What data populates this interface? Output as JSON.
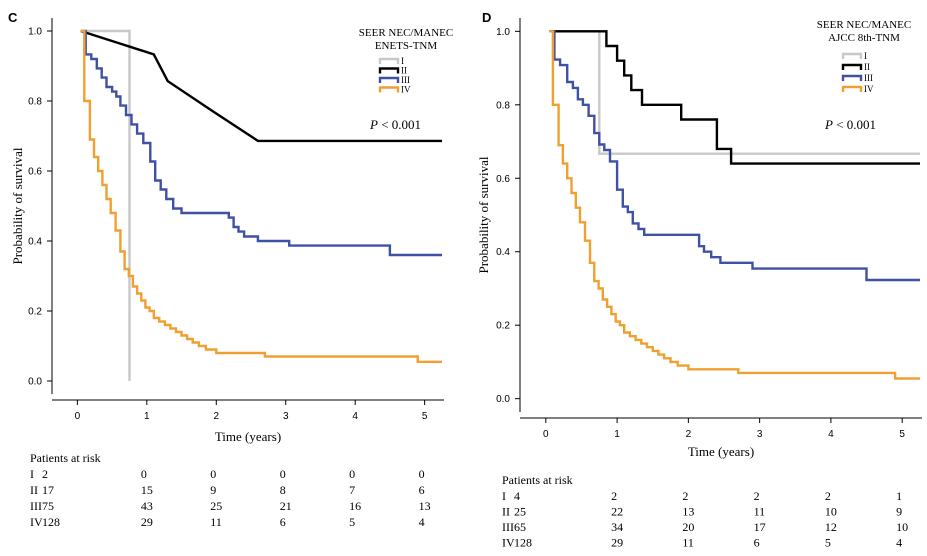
{
  "chart_data": [
    {
      "panel": "C",
      "type": "line",
      "title": [
        "SEER NEC/MANEC",
        "ENETS-TNM"
      ],
      "xlabel": "Time (years)",
      "ylabel": "Probability of survival",
      "xlim": [
        -0.25,
        5.25
      ],
      "ylim": [
        -0.02,
        1.02
      ],
      "xticks": [
        0,
        1,
        2,
        3,
        4,
        5
      ],
      "yticks": [
        0.0,
        0.2,
        0.4,
        0.6,
        0.8,
        1.0
      ],
      "ytick_labels": [
        "0.0",
        "0.2",
        "0.4",
        "0.6",
        "0.8",
        "1.0"
      ],
      "legend_position": "top-right",
      "annotation_p": "P",
      "annotation_rest": " < 0.001",
      "series": [
        {
          "name": "I",
          "color": "#c8c8c8",
          "x": [
            0.05,
            0.75,
            0.75
          ],
          "y": [
            1.0,
            1.0,
            0.0
          ]
        },
        {
          "name": "II",
          "color": "#000000",
          "x": [
            0.05,
            1.1,
            1.3,
            1.95,
            2.6,
            5.25
          ],
          "y": [
            1.0,
            0.933,
            0.857,
            0.771,
            0.686,
            0.686
          ]
        },
        {
          "name": "III",
          "color": "#3f51a5",
          "x": [
            0.05,
            0.12,
            0.2,
            0.28,
            0.35,
            0.42,
            0.5,
            0.56,
            0.62,
            0.7,
            0.78,
            0.86,
            0.95,
            1.05,
            1.12,
            1.2,
            1.28,
            1.38,
            1.5,
            1.7,
            2.18,
            2.25,
            2.32,
            2.4,
            2.6,
            3.05,
            4.5,
            5.25
          ],
          "y": [
            1.0,
            0.933,
            0.92,
            0.893,
            0.867,
            0.84,
            0.827,
            0.813,
            0.787,
            0.76,
            0.733,
            0.707,
            0.68,
            0.627,
            0.573,
            0.547,
            0.52,
            0.493,
            0.48,
            0.48,
            0.467,
            0.44,
            0.427,
            0.413,
            0.4,
            0.387,
            0.36,
            0.36
          ],
          "step": true
        },
        {
          "name": "IV",
          "color": "#f0a030",
          "x": [
            0.05,
            0.1,
            0.18,
            0.24,
            0.3,
            0.36,
            0.42,
            0.48,
            0.55,
            0.62,
            0.68,
            0.74,
            0.8,
            0.86,
            0.92,
            0.98,
            1.04,
            1.1,
            1.18,
            1.26,
            1.34,
            1.42,
            1.5,
            1.58,
            1.66,
            1.75,
            1.85,
            2.0,
            2.2,
            2.7,
            4.9,
            5.25
          ],
          "y": [
            1.0,
            0.8,
            0.69,
            0.64,
            0.6,
            0.56,
            0.52,
            0.48,
            0.43,
            0.37,
            0.32,
            0.3,
            0.27,
            0.25,
            0.23,
            0.21,
            0.2,
            0.18,
            0.17,
            0.16,
            0.15,
            0.14,
            0.13,
            0.12,
            0.11,
            0.1,
            0.09,
            0.08,
            0.08,
            0.07,
            0.055,
            0.055
          ],
          "step": true
        }
      ],
      "risk_table": {
        "title": "Patients at risk",
        "rows": [
          {
            "label": "I",
            "values": [
              "2",
              "0",
              "0",
              "0",
              "0",
              "0"
            ]
          },
          {
            "label": "II",
            "values": [
              "17",
              "15",
              "9",
              "8",
              "7",
              "6"
            ]
          },
          {
            "label": "III",
            "values": [
              "75",
              "43",
              "25",
              "21",
              "16",
              "13"
            ]
          },
          {
            "label": "IV",
            "values": [
              "128",
              "29",
              "11",
              "6",
              "5",
              "4"
            ]
          }
        ]
      }
    },
    {
      "panel": "D",
      "type": "line",
      "title": [
        "SEER NEC/MANEC",
        "AJCC 8th-TNM"
      ],
      "xlabel": "Time (years)",
      "ylabel": "Probability of survival",
      "xlim": [
        -0.25,
        5.25
      ],
      "ylim": [
        -0.02,
        1.02
      ],
      "xticks": [
        0,
        1,
        2,
        3,
        4,
        5
      ],
      "yticks": [
        0.0,
        0.2,
        0.4,
        0.6,
        0.8,
        1.0
      ],
      "ytick_labels": [
        "0.0",
        "0.2",
        "0.4",
        "0.6",
        "0.8",
        "1.0"
      ],
      "legend_position": "top-right",
      "annotation_p": "P",
      "annotation_rest": " < 0.001",
      "series": [
        {
          "name": "I",
          "color": "#c8c8c8",
          "x": [
            0.05,
            0.75,
            0.75,
            5.25
          ],
          "y": [
            1.0,
            1.0,
            0.667,
            0.667
          ]
        },
        {
          "name": "II",
          "color": "#000000",
          "x": [
            0.05,
            0.85,
            1.0,
            1.1,
            1.2,
            1.35,
            1.9,
            2.4,
            2.6,
            5.25
          ],
          "y": [
            1.0,
            0.96,
            0.92,
            0.88,
            0.84,
            0.8,
            0.76,
            0.68,
            0.64,
            0.64
          ],
          "step": true
        },
        {
          "name": "III",
          "color": "#3f51a5",
          "x": [
            0.05,
            0.12,
            0.2,
            0.3,
            0.38,
            0.45,
            0.52,
            0.6,
            0.68,
            0.75,
            0.82,
            0.9,
            1.0,
            1.08,
            1.15,
            1.22,
            1.3,
            1.38,
            1.5,
            2.15,
            2.22,
            2.32,
            2.45,
            2.9,
            3.8,
            4.5,
            5.25
          ],
          "y": [
            1.0,
            0.923,
            0.908,
            0.862,
            0.846,
            0.815,
            0.8,
            0.77,
            0.723,
            0.692,
            0.677,
            0.646,
            0.569,
            0.523,
            0.508,
            0.477,
            0.462,
            0.446,
            0.446,
            0.415,
            0.4,
            0.385,
            0.37,
            0.354,
            0.354,
            0.323,
            0.323
          ],
          "step": true
        },
        {
          "name": "IV",
          "color": "#f0a030",
          "x": [
            0.05,
            0.1,
            0.18,
            0.24,
            0.3,
            0.36,
            0.42,
            0.48,
            0.55,
            0.62,
            0.68,
            0.74,
            0.8,
            0.86,
            0.92,
            0.98,
            1.04,
            1.1,
            1.18,
            1.26,
            1.34,
            1.42,
            1.5,
            1.58,
            1.66,
            1.75,
            1.85,
            2.0,
            2.2,
            2.7,
            4.9,
            5.25
          ],
          "y": [
            1.0,
            0.8,
            0.69,
            0.64,
            0.6,
            0.56,
            0.52,
            0.48,
            0.43,
            0.37,
            0.32,
            0.3,
            0.27,
            0.25,
            0.23,
            0.21,
            0.2,
            0.18,
            0.17,
            0.16,
            0.15,
            0.14,
            0.13,
            0.12,
            0.11,
            0.1,
            0.09,
            0.08,
            0.08,
            0.07,
            0.055,
            0.055
          ],
          "step": true
        }
      ],
      "risk_table": {
        "title": "Patients at risk",
        "rows": [
          {
            "label": "I",
            "values": [
              "4",
              "2",
              "2",
              "2",
              "2",
              "1"
            ]
          },
          {
            "label": "II",
            "values": [
              "25",
              "22",
              "13",
              "11",
              "10",
              "9"
            ]
          },
          {
            "label": "III",
            "values": [
              "65",
              "34",
              "20",
              "17",
              "12",
              "10"
            ]
          },
          {
            "label": "IV",
            "values": [
              "128",
              "29",
              "11",
              "6",
              "5",
              "4"
            ]
          }
        ]
      }
    }
  ]
}
